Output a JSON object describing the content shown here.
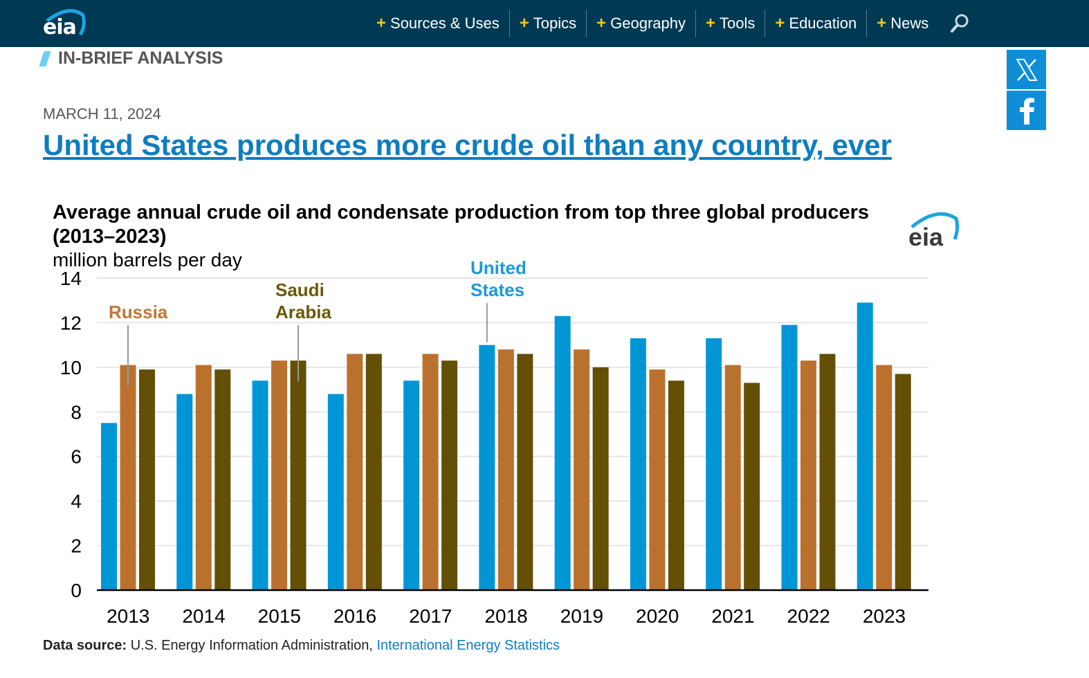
{
  "header": {
    "logo_text": "eia",
    "nav": [
      {
        "label": "Sources & Uses"
      },
      {
        "label": "Topics"
      },
      {
        "label": "Geography"
      },
      {
        "label": "Tools"
      },
      {
        "label": "Education"
      },
      {
        "label": "News"
      }
    ],
    "search_icon": "search-icon"
  },
  "section_label": "IN-BRIEF ANALYSIS",
  "social": [
    {
      "icon": "x-icon"
    },
    {
      "icon": "facebook-icon"
    }
  ],
  "article": {
    "date": "MARCH 11, 2024",
    "headline": "United States produces more crude oil than any country, ever"
  },
  "chart_logo_text": "eia",
  "chart_data": {
    "type": "bar",
    "title": "Average annual crude oil and condensate production from top three global producers (2013–2023)",
    "ylabel": "million barrels per day",
    "xlabel": "",
    "ylim": [
      0,
      14
    ],
    "yticks": [
      0,
      2,
      4,
      6,
      8,
      10,
      12,
      14
    ],
    "grid": true,
    "categories": [
      "2013",
      "2014",
      "2015",
      "2016",
      "2017",
      "2018",
      "2019",
      "2020",
      "2021",
      "2022",
      "2023"
    ],
    "series": [
      {
        "name": "United States",
        "color": "#0096d6",
        "values": [
          7.5,
          8.8,
          9.4,
          8.8,
          9.4,
          11.0,
          12.3,
          11.3,
          11.3,
          11.9,
          12.9
        ]
      },
      {
        "name": "Russia",
        "color": "#bb712e",
        "values": [
          10.1,
          10.1,
          10.3,
          10.6,
          10.6,
          10.8,
          10.8,
          9.9,
          10.1,
          10.3,
          10.1
        ]
      },
      {
        "name": "Saudi Arabia",
        "color": "#634f05",
        "values": [
          9.9,
          9.9,
          10.3,
          10.6,
          10.3,
          10.6,
          10.0,
          9.4,
          9.3,
          10.6,
          9.7
        ]
      }
    ],
    "annotations": [
      {
        "text": [
          "Russia"
        ],
        "series": "Russia",
        "category": "2013"
      },
      {
        "text": [
          "Saudi",
          "Arabia"
        ],
        "series": "Saudi Arabia",
        "category": "2015"
      },
      {
        "text": [
          "United",
          "States"
        ],
        "series": "United States",
        "category": "2018"
      }
    ]
  },
  "footer": {
    "source_label": "Data source:",
    "source_text": " U.S. Energy Information Administration, ",
    "source_link": "International Energy Statistics"
  }
}
